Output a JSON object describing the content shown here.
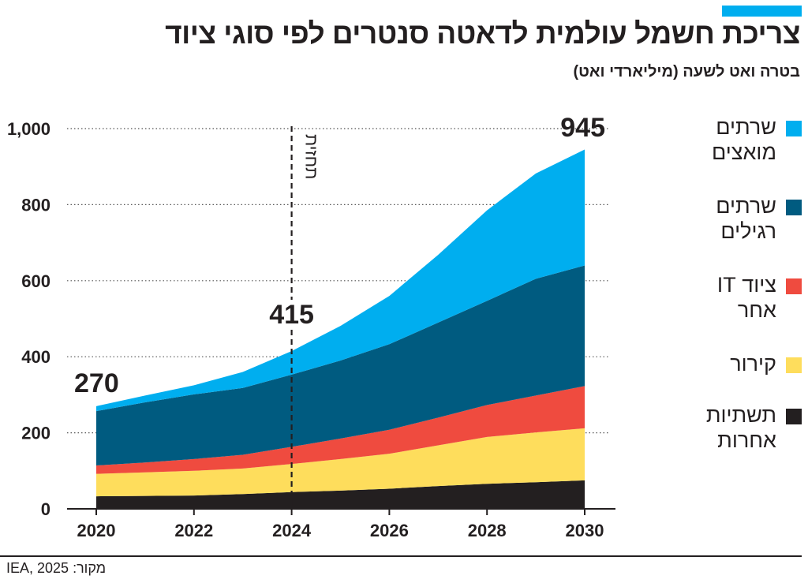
{
  "title": "צריכת חשמל עולמית לדאטה סנטרים לפי סוגי ציוד",
  "subtitle": "בטרה ואט לשעה (מיליארדי ואט)",
  "source": "מקור: IEA, 2025",
  "accent_color": "#00AEEF",
  "chart_data": {
    "type": "area",
    "stacked": true,
    "title": "צריכת חשמל עולמית לדאטה סנטרים לפי סוגי ציוד",
    "subtitle": "בטרה ואט לשעה (מיליארדי ואט)",
    "x": [
      2020,
      2021,
      2022,
      2023,
      2024,
      2025,
      2026,
      2027,
      2028,
      2029,
      2030
    ],
    "x_ticks": [
      "2020",
      "2022",
      "2024",
      "2026",
      "2028",
      "2030"
    ],
    "y_ticks": [
      "0",
      "200",
      "400",
      "600",
      "800",
      "1,000"
    ],
    "ylim": [
      0,
      1000
    ],
    "grid": "horizontal dotted",
    "legend_position": "right",
    "series": [
      {
        "name": "תשתיות אחרות",
        "color": "#231F20",
        "values": [
          33,
          34,
          35,
          39,
          44,
          48,
          53,
          60,
          66,
          70,
          75
        ]
      },
      {
        "name": "קירור",
        "color": "#FEDD5C",
        "values": [
          59,
          62,
          65,
          67,
          74,
          83,
          92,
          107,
          123,
          131,
          137
        ]
      },
      {
        "name": "ציוד IT אחר",
        "color": "#EF4B3F",
        "values": [
          22,
          26,
          31,
          36,
          45,
          54,
          63,
          73,
          84,
          97,
          111
        ]
      },
      {
        "name": "שרתים רגילים",
        "color": "#005B80",
        "values": [
          143,
          158,
          170,
          176,
          190,
          205,
          225,
          250,
          274,
          307,
          317
        ]
      },
      {
        "name": "שרתים מואצים",
        "color": "#00AEEF",
        "values": [
          13,
          18,
          24,
          42,
          62,
          91,
          127,
          178,
          238,
          277,
          305
        ]
      }
    ],
    "legend_labels": [
      [
        "שרתים",
        "מואצים"
      ],
      [
        "שרתים",
        "רגילים"
      ],
      [
        "ציוד IT",
        "אחר"
      ],
      [
        "קירור"
      ],
      [
        "תשתיות",
        "אחרות"
      ]
    ],
    "annotations": [
      {
        "x": 2020,
        "text": "270"
      },
      {
        "x": 2024,
        "text": "415"
      },
      {
        "x": 2030,
        "text": "945"
      }
    ],
    "forecast_marker": {
      "x": 2024,
      "text": "תחזית"
    }
  }
}
